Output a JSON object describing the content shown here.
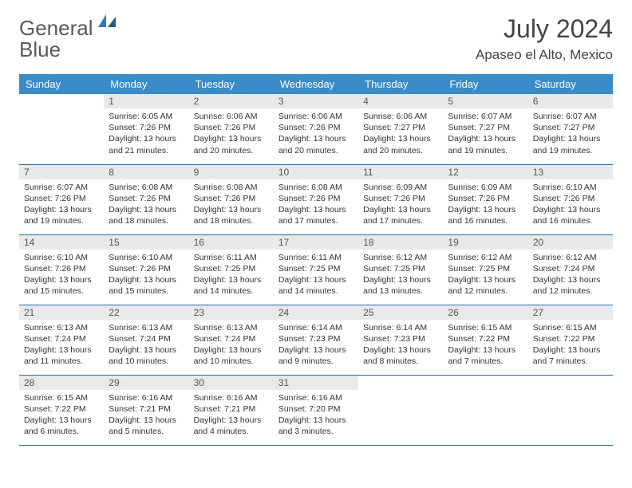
{
  "logo": {
    "text1": "General",
    "text2": "Blue"
  },
  "title": "July 2024",
  "location": "Apaseo el Alto, Mexico",
  "colors": {
    "header_bg": "#3b8bc9",
    "row_border": "#2a6ca3",
    "daynum_bg": "#e9e9e9",
    "logo_gray": "#5a5a5a",
    "logo_blue": "#2a7bbf"
  },
  "weekdays": [
    "Sunday",
    "Monday",
    "Tuesday",
    "Wednesday",
    "Thursday",
    "Friday",
    "Saturday"
  ],
  "first_weekday_index": 1,
  "days": [
    {
      "n": 1,
      "sunrise": "6:05 AM",
      "sunset": "7:26 PM",
      "dl": "13 hours and 21 minutes."
    },
    {
      "n": 2,
      "sunrise": "6:06 AM",
      "sunset": "7:26 PM",
      "dl": "13 hours and 20 minutes."
    },
    {
      "n": 3,
      "sunrise": "6:06 AM",
      "sunset": "7:26 PM",
      "dl": "13 hours and 20 minutes."
    },
    {
      "n": 4,
      "sunrise": "6:06 AM",
      "sunset": "7:27 PM",
      "dl": "13 hours and 20 minutes."
    },
    {
      "n": 5,
      "sunrise": "6:07 AM",
      "sunset": "7:27 PM",
      "dl": "13 hours and 19 minutes."
    },
    {
      "n": 6,
      "sunrise": "6:07 AM",
      "sunset": "7:27 PM",
      "dl": "13 hours and 19 minutes."
    },
    {
      "n": 7,
      "sunrise": "6:07 AM",
      "sunset": "7:26 PM",
      "dl": "13 hours and 19 minutes."
    },
    {
      "n": 8,
      "sunrise": "6:08 AM",
      "sunset": "7:26 PM",
      "dl": "13 hours and 18 minutes."
    },
    {
      "n": 9,
      "sunrise": "6:08 AM",
      "sunset": "7:26 PM",
      "dl": "13 hours and 18 minutes."
    },
    {
      "n": 10,
      "sunrise": "6:08 AM",
      "sunset": "7:26 PM",
      "dl": "13 hours and 17 minutes."
    },
    {
      "n": 11,
      "sunrise": "6:09 AM",
      "sunset": "7:26 PM",
      "dl": "13 hours and 17 minutes."
    },
    {
      "n": 12,
      "sunrise": "6:09 AM",
      "sunset": "7:26 PM",
      "dl": "13 hours and 16 minutes."
    },
    {
      "n": 13,
      "sunrise": "6:10 AM",
      "sunset": "7:26 PM",
      "dl": "13 hours and 16 minutes."
    },
    {
      "n": 14,
      "sunrise": "6:10 AM",
      "sunset": "7:26 PM",
      "dl": "13 hours and 15 minutes."
    },
    {
      "n": 15,
      "sunrise": "6:10 AM",
      "sunset": "7:26 PM",
      "dl": "13 hours and 15 minutes."
    },
    {
      "n": 16,
      "sunrise": "6:11 AM",
      "sunset": "7:25 PM",
      "dl": "13 hours and 14 minutes."
    },
    {
      "n": 17,
      "sunrise": "6:11 AM",
      "sunset": "7:25 PM",
      "dl": "13 hours and 14 minutes."
    },
    {
      "n": 18,
      "sunrise": "6:12 AM",
      "sunset": "7:25 PM",
      "dl": "13 hours and 13 minutes."
    },
    {
      "n": 19,
      "sunrise": "6:12 AM",
      "sunset": "7:25 PM",
      "dl": "13 hours and 12 minutes."
    },
    {
      "n": 20,
      "sunrise": "6:12 AM",
      "sunset": "7:24 PM",
      "dl": "13 hours and 12 minutes."
    },
    {
      "n": 21,
      "sunrise": "6:13 AM",
      "sunset": "7:24 PM",
      "dl": "13 hours and 11 minutes."
    },
    {
      "n": 22,
      "sunrise": "6:13 AM",
      "sunset": "7:24 PM",
      "dl": "13 hours and 10 minutes."
    },
    {
      "n": 23,
      "sunrise": "6:13 AM",
      "sunset": "7:24 PM",
      "dl": "13 hours and 10 minutes."
    },
    {
      "n": 24,
      "sunrise": "6:14 AM",
      "sunset": "7:23 PM",
      "dl": "13 hours and 9 minutes."
    },
    {
      "n": 25,
      "sunrise": "6:14 AM",
      "sunset": "7:23 PM",
      "dl": "13 hours and 8 minutes."
    },
    {
      "n": 26,
      "sunrise": "6:15 AM",
      "sunset": "7:22 PM",
      "dl": "13 hours and 7 minutes."
    },
    {
      "n": 27,
      "sunrise": "6:15 AM",
      "sunset": "7:22 PM",
      "dl": "13 hours and 7 minutes."
    },
    {
      "n": 28,
      "sunrise": "6:15 AM",
      "sunset": "7:22 PM",
      "dl": "13 hours and 6 minutes."
    },
    {
      "n": 29,
      "sunrise": "6:16 AM",
      "sunset": "7:21 PM",
      "dl": "13 hours and 5 minutes."
    },
    {
      "n": 30,
      "sunrise": "6:16 AM",
      "sunset": "7:21 PM",
      "dl": "13 hours and 4 minutes."
    },
    {
      "n": 31,
      "sunrise": "6:16 AM",
      "sunset": "7:20 PM",
      "dl": "13 hours and 3 minutes."
    }
  ],
  "labels": {
    "sunrise": "Sunrise:",
    "sunset": "Sunset:",
    "daylight": "Daylight:"
  }
}
